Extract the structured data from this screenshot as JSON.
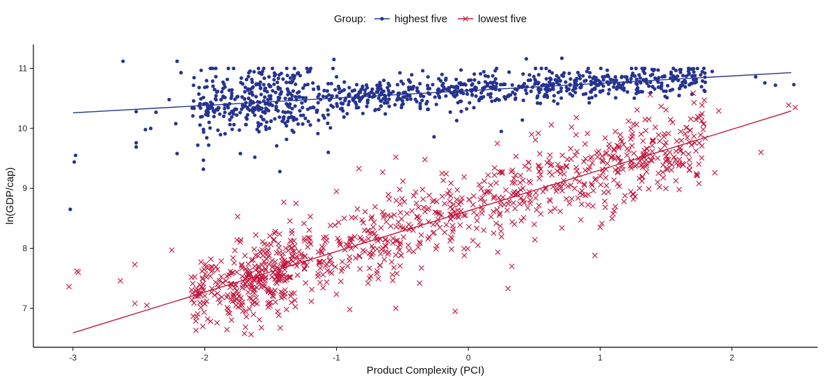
{
  "chart_data": {
    "type": "scatter",
    "xlabel": "Product Complexity (PCI)",
    "ylabel": "ln(GDP/cap)",
    "xlim": [
      -3.3,
      2.65
    ],
    "ylim": [
      6.35,
      11.4
    ],
    "xticks": [
      -3,
      -2,
      -1,
      0,
      1,
      2
    ],
    "yticks": [
      7,
      8,
      9,
      10,
      11
    ],
    "grid": false,
    "legend_position": "top",
    "legend_title": "Group:",
    "series": [
      {
        "name": "highest five",
        "color": "#26348f",
        "marker": "circle",
        "fit_line": {
          "x": [
            -3.0,
            2.45
          ],
          "y": [
            10.26,
            10.93
          ]
        },
        "noise_sd": 0.2,
        "points": [
          [
            -3.02,
            8.65
          ],
          [
            -2.98,
            9.55
          ],
          [
            -2.99,
            9.44
          ],
          [
            -2.62,
            11.12
          ],
          [
            -2.52,
            9.76
          ],
          [
            -2.52,
            9.69
          ],
          [
            -2.52,
            10.28
          ],
          [
            -2.45,
            9.98
          ],
          [
            -2.41,
            10.0
          ],
          [
            -2.37,
            10.27
          ],
          [
            -2.27,
            10.48
          ],
          [
            -2.21,
            9.58
          ],
          [
            -2.22,
            10.08
          ],
          [
            -2.21,
            11.12
          ],
          [
            -2.18,
            10.93
          ],
          [
            -2.01,
            9.32
          ],
          [
            -2.01,
            9.47
          ],
          [
            -1.97,
            9.72
          ],
          [
            -1.43,
            9.28
          ],
          [
            -1.62,
            9.52
          ],
          [
            -1.73,
            9.58
          ],
          [
            -0.26,
            9.86
          ],
          [
            0.25,
            9.95
          ],
          [
            0.41,
            10.14
          ],
          [
            0.71,
            11.17
          ],
          [
            0.44,
            11.16
          ],
          [
            -1.02,
            11.15
          ],
          [
            2.18,
            10.86
          ],
          [
            2.25,
            10.76
          ],
          [
            2.33,
            10.72
          ],
          [
            2.47,
            10.73
          ],
          [
            1.85,
            10.95
          ],
          [
            1.72,
            10.88
          ],
          [
            1.6,
            10.55
          ],
          [
            1.5,
            10.62
          ],
          [
            -1.15,
            10.3
          ],
          [
            -0.8,
            10.25
          ],
          [
            -0.5,
            10.4
          ],
          [
            0.1,
            10.5
          ],
          [
            0.6,
            10.52
          ],
          [
            1.0,
            10.62
          ],
          [
            1.3,
            10.78
          ],
          [
            -0.2,
            10.9
          ],
          [
            0.9,
            10.95
          ],
          [
            -1.5,
            10.7
          ]
        ]
      },
      {
        "name": "lowest five",
        "color": "#c0163c",
        "marker": "x",
        "fit_line": {
          "x": [
            -3.0,
            2.45
          ],
          "y": [
            6.59,
            10.29
          ]
        },
        "noise_sd": 0.32,
        "points": [
          [
            -3.03,
            7.36
          ],
          [
            -2.97,
            7.62
          ],
          [
            -2.96,
            7.6
          ],
          [
            -2.64,
            7.46
          ],
          [
            -2.53,
            7.08
          ],
          [
            -2.44,
            7.05
          ],
          [
            -2.53,
            7.73
          ],
          [
            -2.25,
            7.97
          ],
          [
            -2.02,
            7.62
          ],
          [
            -2.01,
            7.1
          ],
          [
            -1.75,
            8.53
          ],
          [
            -1.4,
            8.77
          ],
          [
            -1.35,
            8.13
          ],
          [
            -1.38,
            6.98
          ],
          [
            -0.83,
            9.33
          ],
          [
            -0.65,
            9.27
          ],
          [
            -0.55,
            9.52
          ],
          [
            -0.33,
            9.48
          ],
          [
            0.22,
            9.75
          ],
          [
            0.48,
            9.9
          ],
          [
            0.63,
            10.06
          ],
          [
            0.82,
            10.18
          ],
          [
            1.28,
            10.31
          ],
          [
            1.37,
            10.15
          ],
          [
            1.38,
            10.56
          ],
          [
            1.5,
            10.31
          ],
          [
            1.55,
            10.1
          ],
          [
            1.58,
            9.42
          ],
          [
            1.6,
            8.98
          ],
          [
            1.68,
            9.38
          ],
          [
            1.75,
            9.08
          ],
          [
            1.79,
            10.47
          ],
          [
            1.87,
            9.26
          ],
          [
            1.9,
            10.29
          ],
          [
            2.22,
            9.6
          ],
          [
            2.43,
            10.39
          ],
          [
            2.48,
            10.35
          ],
          [
            0.96,
            7.88
          ],
          [
            0.3,
            7.33
          ],
          [
            0.33,
            7.7
          ],
          [
            -0.37,
            7.42
          ],
          [
            -0.55,
            7.0
          ],
          [
            -0.9,
            6.98
          ],
          [
            -1.53,
            7.33
          ],
          [
            -0.1,
            6.95
          ],
          [
            -1.0,
            8.95
          ],
          [
            -0.2,
            9.25
          ],
          [
            1.0,
            8.35
          ],
          [
            -0.75,
            7.5
          ],
          [
            0.5,
            8.4
          ]
        ]
      }
    ],
    "bulk": {
      "seed": 20240611,
      "count_per_series": 1000,
      "x_distribution_note": "points concentrated between -1.7 and 1.8"
    }
  }
}
